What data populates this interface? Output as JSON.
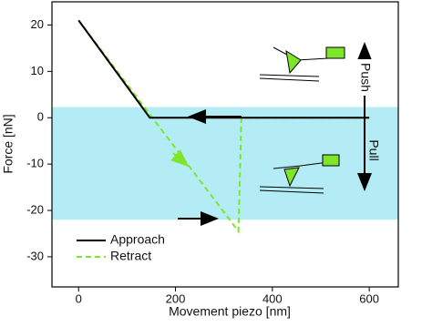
{
  "chart_data": {
    "type": "line",
    "xlabel": "Movement piezo [nm]",
    "ylabel": "Force [nN]",
    "xlim": [
      -55,
      660
    ],
    "ylim": [
      -36.5,
      25
    ],
    "xticks": [
      0,
      200,
      400,
      600
    ],
    "yticks": [
      20,
      10,
      0,
      -10,
      -20,
      -30
    ],
    "band": [
      -22,
      2.3
    ],
    "band_color": "#b3ecf4",
    "series": [
      {
        "name": "Approach",
        "color": "#000000",
        "dash": false,
        "x": [
          0,
          147,
          600
        ],
        "values": [
          21,
          0,
          0
        ]
      },
      {
        "name": "Retract",
        "color": "#7ee62a",
        "dash": true,
        "x": [
          600,
          336,
          330,
          0
        ],
        "values": [
          0,
          0,
          -24.5,
          21
        ]
      }
    ],
    "annotations": [
      "Push",
      "Pull"
    ]
  }
}
